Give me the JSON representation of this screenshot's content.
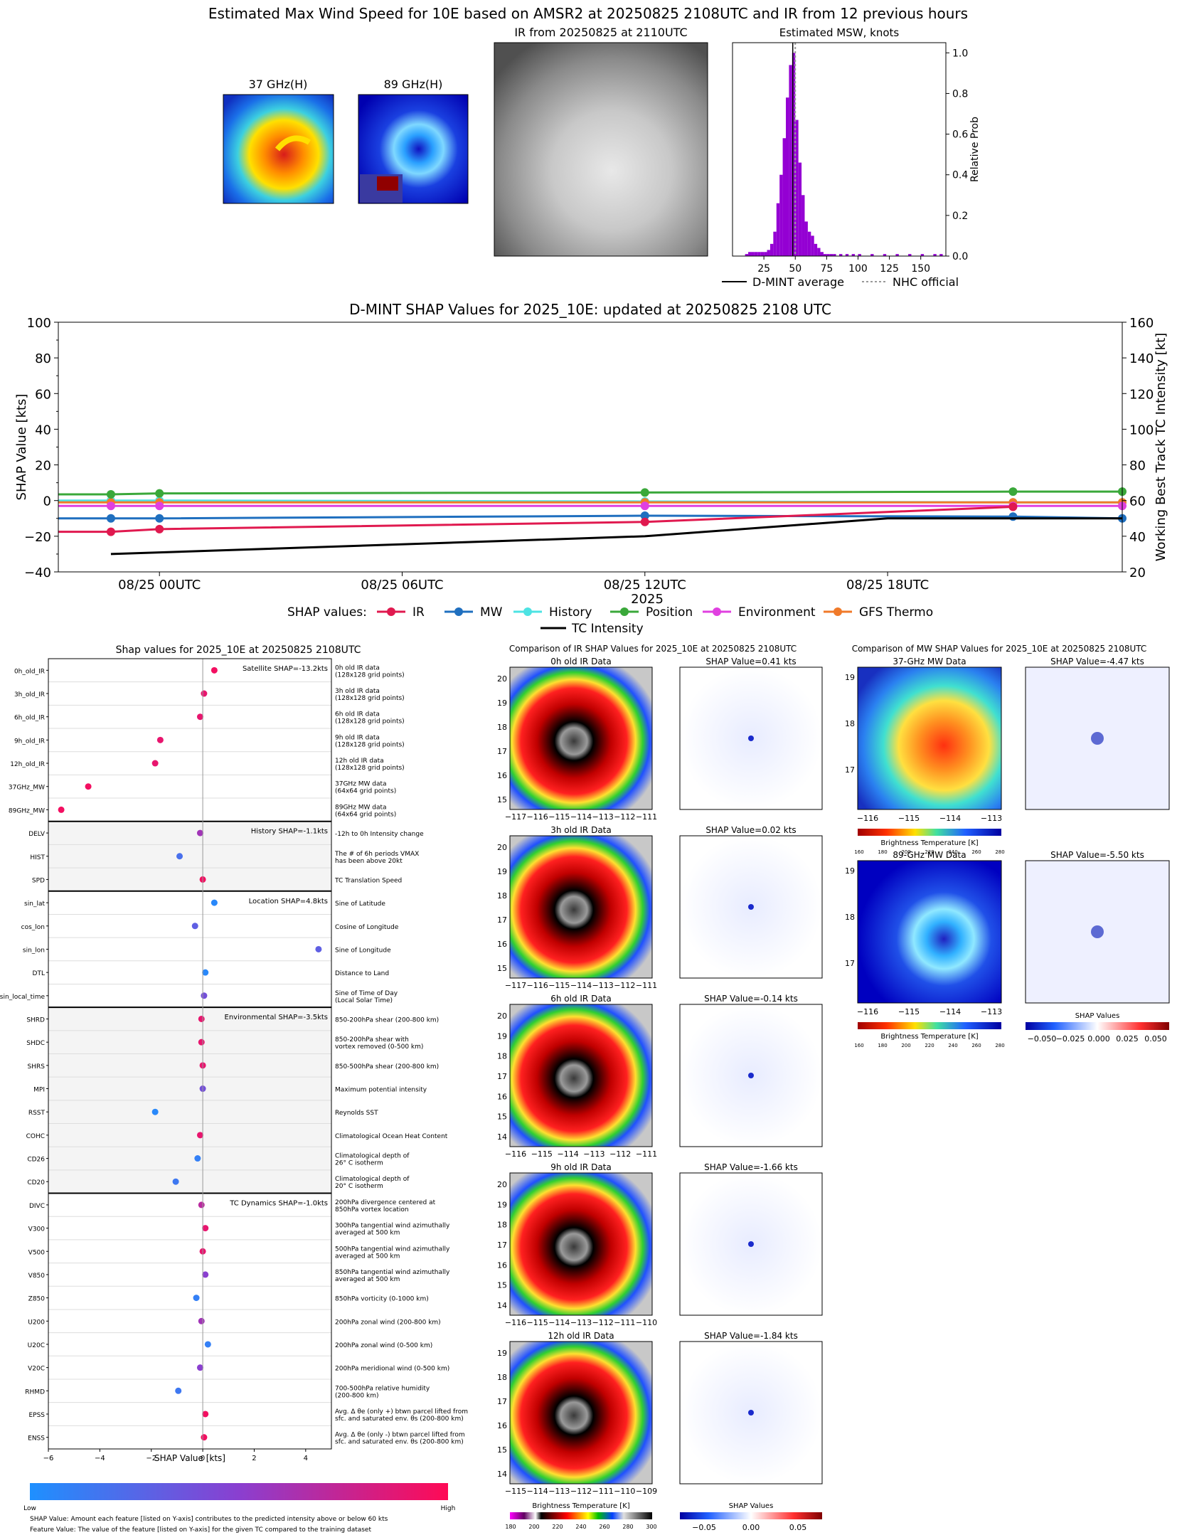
{
  "header": {
    "title": "Estimated Max Wind Speed for 10E based on AMSR2 at 20250825 2108UTC and IR from 12 previous hours",
    "mw37_title": "37 GHz(H)",
    "mw89_title": "89 GHz(H)",
    "ir_title": "IR from 20250825 at 2110UTC"
  },
  "colors": {
    "ir": "#e0194f",
    "mw": "#1f6fbf",
    "history": "#4de3e3",
    "position": "#3aa83a",
    "environment": "#e040e0",
    "gfs_thermo": "#f07a2a",
    "intensity": "#000000",
    "hist_bar": "#9400d3"
  },
  "chart_data": [
    {
      "type": "bar",
      "title": "Estimated MSW, knots",
      "ylabel": "Relative Prob",
      "xlim": [
        0,
        170
      ],
      "ylim": [
        0,
        1.05
      ],
      "xticks": [
        25,
        50,
        75,
        100,
        125,
        150
      ],
      "yticks": [
        "0.0",
        "0.2",
        "0.4",
        "0.6",
        "0.8",
        "1.0"
      ],
      "bin_width": 2.5,
      "bins": [
        [
          10,
          0.01
        ],
        [
          12.5,
          0.02
        ],
        [
          15,
          0.02
        ],
        [
          17.5,
          0.02
        ],
        [
          20,
          0.02
        ],
        [
          22.5,
          0.02
        ],
        [
          25,
          0.02
        ],
        [
          27.5,
          0.03
        ],
        [
          30,
          0.06
        ],
        [
          32.5,
          0.12
        ],
        [
          35,
          0.26
        ],
        [
          37.5,
          0.4
        ],
        [
          40,
          0.58
        ],
        [
          42.5,
          0.78
        ],
        [
          45,
          0.94
        ],
        [
          47.5,
          1.0
        ],
        [
          50,
          0.67
        ],
        [
          52.5,
          0.46
        ],
        [
          55,
          0.3
        ],
        [
          57.5,
          0.17
        ],
        [
          60,
          0.12
        ],
        [
          62.5,
          0.1
        ],
        [
          65,
          0.06
        ],
        [
          67.5,
          0.04
        ],
        [
          70,
          0.02
        ],
        [
          72.5,
          0.01
        ],
        [
          75,
          0.01
        ],
        [
          77.5,
          0.01
        ],
        [
          80,
          0.01
        ],
        [
          85,
          0.01
        ],
        [
          90,
          0.01
        ],
        [
          95,
          0.01
        ],
        [
          100,
          0.01
        ],
        [
          110,
          0.01
        ],
        [
          120,
          0.01
        ],
        [
          130,
          0.01
        ],
        [
          140,
          0.01
        ],
        [
          150,
          0.01
        ],
        [
          160,
          0.01
        ],
        [
          165,
          0.01
        ]
      ],
      "dmint_average": 48,
      "nhc_official": 50,
      "legend": [
        "D-MINT average",
        "NHC official"
      ]
    },
    {
      "type": "line",
      "title": "D-MINT SHAP Values for 2025_10E: updated at 20250825 2108 UTC",
      "xlabel": "2025",
      "ylabel": "SHAP Value [kts]",
      "y2label": "Working Best Track TC Intensity [kt]",
      "ylim": [
        -40,
        100
      ],
      "y2lim": [
        20,
        160
      ],
      "yticks": [
        "−40",
        "−20",
        "0",
        "20",
        "40",
        "60",
        "80",
        "100"
      ],
      "y2ticks": [
        "20",
        "40",
        "60",
        "80",
        "100",
        "120",
        "140",
        "160"
      ],
      "xlim": [
        -2.5,
        23.8
      ],
      "xticks": [
        {
          "x": 0,
          "label": "08/25 00UTC"
        },
        {
          "x": 6,
          "label": "08/25 06UTC"
        },
        {
          "x": 12,
          "label": "08/25 12UTC"
        },
        {
          "x": 18,
          "label": "08/25 18UTC"
        }
      ],
      "legend_prefix": "SHAP values:",
      "series": [
        {
          "name": "IR",
          "x": [
            -2.5,
            -1.2,
            0,
            12,
            21.1
          ],
          "values": [
            -17.5,
            -17.5,
            -16,
            -12,
            -3.5
          ]
        },
        {
          "name": "MW",
          "x": [
            -2.5,
            -1.2,
            0,
            12,
            21.1,
            23.8
          ],
          "values": [
            -10,
            -10,
            -10,
            -8.5,
            -9,
            -10
          ]
        },
        {
          "name": "History",
          "x": [
            -2.5,
            -1.2,
            0,
            12,
            21.1,
            23.8
          ],
          "values": [
            0,
            0,
            0,
            -0.5,
            -1,
            -1
          ]
        },
        {
          "name": "Position",
          "x": [
            -2.5,
            -1.2,
            0,
            12,
            21.1,
            23.8
          ],
          "values": [
            3.5,
            3.5,
            4,
            4.5,
            5,
            5
          ]
        },
        {
          "name": "Environment",
          "x": [
            -2.5,
            -1.2,
            0,
            12,
            21.1,
            23.8
          ],
          "values": [
            -3,
            -3,
            -3,
            -3,
            -3,
            -3
          ]
        },
        {
          "name": "GFS Thermo",
          "x": [
            -2.5,
            -1.2,
            0,
            12,
            21.1,
            23.8
          ],
          "values": [
            -1,
            -1,
            -1,
            -1,
            -1,
            -1
          ]
        }
      ],
      "intensity": {
        "name": "TC Intensity",
        "x": [
          -1.2,
          12,
          18,
          21.1,
          23.8
        ],
        "values": [
          30,
          40,
          50,
          50,
          50
        ]
      }
    },
    {
      "type": "scatter",
      "title": "Shap values for 2025_10E at 20250825 2108UTC",
      "xlabel": "SHAP Value [kts]",
      "xlim": [
        -6,
        5
      ],
      "xticks": [
        "−6",
        "−4",
        "−2",
        "0",
        "2",
        "4"
      ],
      "colorbar_low": "Low",
      "colorbar_high": "High",
      "groups": [
        {
          "label": "Satellite SHAP=-13.2kts",
          "shaded": false,
          "features": [
            {
              "name": "0h_old_IR",
              "desc": [
                "0h old IR data",
                "(128x128 grid points)"
              ],
              "value": 0.45,
              "level": 0.95
            },
            {
              "name": "3h_old_IR",
              "desc": [
                "3h old IR data",
                "(128x128 grid points)"
              ],
              "value": 0.05,
              "level": 0.9
            },
            {
              "name": "6h_old_IR",
              "desc": [
                "6h old IR data",
                "(128x128 grid points)"
              ],
              "value": -0.1,
              "level": 0.9
            },
            {
              "name": "9h_old_IR",
              "desc": [
                "9h old IR data",
                "(128x128 grid points)"
              ],
              "value": -1.65,
              "level": 0.9
            },
            {
              "name": "12h_old_IR",
              "desc": [
                "12h old IR data",
                "(128x128 grid points)"
              ],
              "value": -1.85,
              "level": 0.9
            },
            {
              "name": "37GHz_MW",
              "desc": [
                "37GHz MW data",
                "(64x64 grid points)"
              ],
              "value": -4.45,
              "level": 0.95
            },
            {
              "name": "89GHz_MW",
              "desc": [
                "89GHz MW data",
                "(64x64 grid points)"
              ],
              "value": -5.5,
              "level": 0.95
            }
          ]
        },
        {
          "label": "History SHAP=-1.1kts",
          "shaded": true,
          "features": [
            {
              "name": "DELV",
              "desc": [
                "-12h to 0h Intensity change"
              ],
              "value": -0.1,
              "level": 0.6
            },
            {
              "name": "HIST",
              "desc": [
                "The # of 6h periods VMAX",
                "has been above 20kt"
              ],
              "value": -0.9,
              "level": 0.2
            },
            {
              "name": "SPD",
              "desc": [
                "TC Translation Speed"
              ],
              "value": 0.0,
              "level": 0.95
            }
          ]
        },
        {
          "label": "Location SHAP=4.8kts",
          "shaded": false,
          "features": [
            {
              "name": "sin_lat",
              "desc": [
                "Sine of Latitude"
              ],
              "value": 0.45,
              "level": 0.05
            },
            {
              "name": "cos_lon",
              "desc": [
                "Cosine of Longitude"
              ],
              "value": -0.3,
              "level": 0.3
            },
            {
              "name": "sin_lon",
              "desc": [
                "Sine of Longitude"
              ],
              "value": 4.5,
              "level": 0.3
            },
            {
              "name": "DTL",
              "desc": [
                "Distance to Land"
              ],
              "value": 0.1,
              "level": 0.05
            },
            {
              "name": "sin_local_time",
              "desc": [
                "Sine of Time of Day",
                "(Local Solar Time)"
              ],
              "value": 0.05,
              "level": 0.4
            }
          ]
        },
        {
          "label": "Environmental SHAP=-3.5kts",
          "shaded": true,
          "features": [
            {
              "name": "SHRD",
              "desc": [
                "850-200hPa shear (200-800 km)"
              ],
              "value": -0.05,
              "level": 0.9
            },
            {
              "name": "SHDC",
              "desc": [
                "850-200hPa shear with",
                "vortex removed (0-500 km)"
              ],
              "value": -0.05,
              "level": 0.9
            },
            {
              "name": "SHRS",
              "desc": [
                "850-500hPa shear (200-800 km)"
              ],
              "value": 0.0,
              "level": 0.9
            },
            {
              "name": "MPI",
              "desc": [
                "Maximum potential intensity"
              ],
              "value": 0.0,
              "level": 0.4
            },
            {
              "name": "RSST",
              "desc": [
                "Reynolds SST"
              ],
              "value": -1.85,
              "level": 0.05
            },
            {
              "name": "COHC",
              "desc": [
                "Climatological Ocean Heat Content"
              ],
              "value": -0.1,
              "level": 0.9
            },
            {
              "name": "CD26",
              "desc": [
                "Climatological depth of",
                "26° C isotherm"
              ],
              "value": -0.2,
              "level": 0.1
            },
            {
              "name": "CD20",
              "desc": [
                "Climatological depth of",
                "20° C isotherm"
              ],
              "value": -1.05,
              "level": 0.15
            }
          ]
        },
        {
          "label": "TC Dynamics SHAP=-1.0kts",
          "shaded": false,
          "features": [
            {
              "name": "DIVC",
              "desc": [
                "200hPa divergence centered at",
                "850hPa vortex location"
              ],
              "value": -0.05,
              "level": 0.7
            },
            {
              "name": "V300",
              "desc": [
                "300hPa tangential wind azimuthally",
                "averaged at 500 km"
              ],
              "value": 0.1,
              "level": 0.9
            },
            {
              "name": "V500",
              "desc": [
                "500hPa tangential wind azimuthally",
                "averaged at 500 km"
              ],
              "value": 0.0,
              "level": 0.9
            },
            {
              "name": "V850",
              "desc": [
                "850hPa tangential wind azimuthally",
                "averaged at 500 km"
              ],
              "value": 0.1,
              "level": 0.5
            },
            {
              "name": "Z850",
              "desc": [
                "850hPa vorticity (0-1000 km)"
              ],
              "value": -0.25,
              "level": 0.1
            },
            {
              "name": "U200",
              "desc": [
                "200hPa zonal wind (200-800 km)"
              ],
              "value": -0.05,
              "level": 0.6
            },
            {
              "name": "U20C",
              "desc": [
                "200hPa zonal wind (0-500 km)"
              ],
              "value": 0.2,
              "level": 0.1
            },
            {
              "name": "V20C",
              "desc": [
                "200hPa meridional wind (0-500 km)"
              ],
              "value": -0.1,
              "level": 0.5
            },
            {
              "name": "RHMD",
              "desc": [
                "700-500hPa relative humidity",
                "(200-800 km)"
              ],
              "value": -0.95,
              "level": 0.15
            },
            {
              "name": "EPSS",
              "desc": [
                "Avg. Δ θe (only +) btwn parcel lifted from",
                "sfc. and saturated env. θs (200-800 km)"
              ],
              "value": 0.1,
              "level": 0.95
            },
            {
              "name": "ENSS",
              "desc": [
                "Avg. Δ θe (only -) btwn parcel lifted from",
                "sfc. and saturated env. θs (200-800 km)"
              ],
              "value": 0.05,
              "level": 0.95
            }
          ]
        }
      ]
    }
  ],
  "notes": {
    "line1": "SHAP Value: Amount each feature [listed on Y-axis] contributes to the predicted intensity above or below 60 kts",
    "line2": "Feature Value: The value of the feature [listed on Y-axis] for the given TC compared to the training dataset"
  },
  "ir_compare": {
    "title": "Comparison of IR SHAP Values for 2025_10E at 20250825 2108UTC",
    "panels": [
      {
        "data_title": "0h old IR Data",
        "shap_title": "SHAP Value=0.41 kts",
        "yticks": [
          "20",
          "19",
          "18",
          "17",
          "16",
          "15"
        ],
        "xticks": [
          "−117",
          "−116",
          "−115",
          "−114",
          "−113",
          "−112",
          "−111"
        ]
      },
      {
        "data_title": "3h old IR Data",
        "shap_title": "SHAP Value=0.02 kts",
        "yticks": [
          "20",
          "19",
          "18",
          "17",
          "16",
          "15"
        ],
        "xticks": [
          "−117",
          "−116",
          "−115",
          "−114",
          "−113",
          "−112",
          "−111"
        ]
      },
      {
        "data_title": "6h old IR Data",
        "shap_title": "SHAP Value=-0.14 kts",
        "yticks": [
          "20",
          "19",
          "18",
          "17",
          "16",
          "15",
          "14"
        ],
        "xticks": [
          "−116",
          "−115",
          "−114",
          "−113",
          "−112",
          "−111"
        ]
      },
      {
        "data_title": "9h old IR Data",
        "shap_title": "SHAP Value=-1.66 kts",
        "yticks": [
          "20",
          "19",
          "18",
          "17",
          "16",
          "15",
          "14"
        ],
        "xticks": [
          "−116",
          "−115",
          "−114",
          "−113",
          "−112",
          "−111",
          "−110"
        ]
      },
      {
        "data_title": "12h old IR Data",
        "shap_title": "SHAP Value=-1.84 kts",
        "yticks": [
          "19",
          "18",
          "17",
          "16",
          "15",
          "14"
        ],
        "xticks": [
          "−115",
          "−114",
          "−113",
          "−112",
          "−111",
          "−110",
          "−109"
        ]
      }
    ],
    "bt_cbar_label": "Brightness Temperature [K]",
    "bt_ticks": [
      "180",
      "200",
      "220",
      "240",
      "260",
      "280",
      "300"
    ],
    "shap_cbar_label": "SHAP Values",
    "shap_ticks": [
      "−0.05",
      "0.00",
      "0.05"
    ]
  },
  "mw_compare": {
    "title": "Comparison of MW SHAP Values for 2025_10E at 20250825 2108UTC",
    "panels": [
      {
        "data_title": "37-GHz MW Data",
        "shap_title": "SHAP Value=-4.47 kts"
      },
      {
        "data_title": "89-GHz MW Data",
        "shap_title": "SHAP Value=-5.50 kts"
      }
    ],
    "yticks": [
      "19",
      "18",
      "17"
    ],
    "xticks": [
      "−116",
      "−115",
      "−114",
      "−113"
    ],
    "bt_cbar_label": "Brightness Temperature [K]",
    "bt_ticks": [
      "160",
      "180",
      "200",
      "220",
      "240",
      "260",
      "280"
    ],
    "shap_cbar_label": "SHAP Values",
    "shap_ticks": [
      "−0.050",
      "−0.025",
      "0.000",
      "0.025",
      "0.050"
    ]
  }
}
